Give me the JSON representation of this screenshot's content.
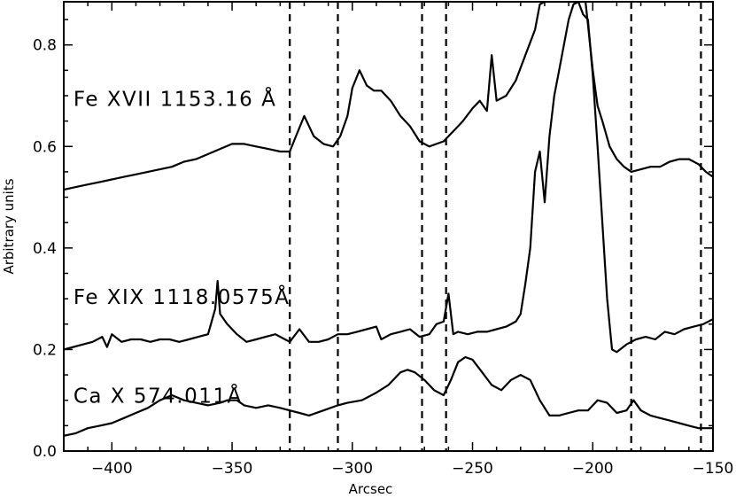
{
  "chart_data": {
    "type": "line",
    "title": "",
    "xlabel": "Arcsec",
    "ylabel": "Arbitrary units",
    "xlim": [
      -420,
      -150
    ],
    "ylim": [
      0.0,
      0.885
    ],
    "x_ticks": [
      -400,
      -350,
      -300,
      -250,
      -200,
      -150
    ],
    "x_tick_labels": [
      "−400",
      "−350",
      "−300",
      "−250",
      "−200",
      "−150"
    ],
    "y_ticks": [
      0.0,
      0.2,
      0.4,
      0.6,
      0.8
    ],
    "y_tick_labels": [
      "0.0",
      "0.2",
      "0.4",
      "0.6",
      "0.8"
    ],
    "vlines": [
      -326,
      -306,
      -271,
      -261,
      -184,
      -155
    ],
    "grid": false,
    "legend": "none",
    "line_color": "#000000",
    "series": [
      {
        "name": "Fe XVII 1153.16 Å",
        "label_anchor": [
          -416,
          0.68
        ],
        "x": [
          -420,
          -415,
          -410,
          -405,
          -400,
          -395,
          -390,
          -385,
          -380,
          -375,
          -370,
          -365,
          -360,
          -355,
          -350,
          -345,
          -340,
          -335,
          -330,
          -326,
          -323,
          -320,
          -316,
          -312,
          -308,
          -305,
          -302,
          -300,
          -297,
          -294,
          -291,
          -288,
          -284,
          -280,
          -276,
          -272,
          -268,
          -265,
          -262,
          -258,
          -254,
          -250,
          -247,
          -244,
          -242,
          -240,
          -236,
          -232,
          -228,
          -224,
          -222,
          -220,
          -218,
          -210,
          -207,
          -203,
          -200,
          -198,
          -196,
          -193,
          -190,
          -187,
          -184,
          -180,
          -176,
          -172,
          -168,
          -164,
          -160,
          -156,
          -153,
          -150
        ],
        "y": [
          0.515,
          0.52,
          0.525,
          0.53,
          0.535,
          0.54,
          0.545,
          0.55,
          0.555,
          0.56,
          0.57,
          0.575,
          0.585,
          0.595,
          0.605,
          0.605,
          0.6,
          0.595,
          0.59,
          0.59,
          0.625,
          0.66,
          0.62,
          0.605,
          0.6,
          0.62,
          0.66,
          0.715,
          0.75,
          0.72,
          0.71,
          0.71,
          0.69,
          0.66,
          0.64,
          0.61,
          0.6,
          0.605,
          0.61,
          0.63,
          0.65,
          0.675,
          0.69,
          0.67,
          0.78,
          0.69,
          0.7,
          0.73,
          0.78,
          0.83,
          0.88,
          0.885,
          0.885,
          0.885,
          0.885,
          0.885,
          0.75,
          0.68,
          0.65,
          0.6,
          0.575,
          0.56,
          0.55,
          0.555,
          0.56,
          0.56,
          0.57,
          0.575,
          0.575,
          0.565,
          0.55,
          0.54
        ]
      },
      {
        "name": "Fe XIX 1118.0575Å",
        "label_anchor": [
          -416,
          0.29
        ],
        "x": [
          -420,
          -416,
          -412,
          -408,
          -404,
          -402,
          -400,
          -396,
          -392,
          -388,
          -384,
          -380,
          -376,
          -372,
          -368,
          -364,
          -360,
          -357,
          -356,
          -355,
          -352,
          -348,
          -344,
          -340,
          -336,
          -332,
          -328,
          -326,
          -322,
          -318,
          -314,
          -310,
          -306,
          -302,
          -298,
          -294,
          -290,
          -288,
          -284,
          -280,
          -276,
          -272,
          -268,
          -265,
          -262,
          -260,
          -258,
          -256,
          -252,
          -248,
          -244,
          -240,
          -236,
          -232,
          -230,
          -228,
          -226,
          -224,
          -222,
          -220,
          -218,
          -216,
          -214,
          -212,
          -210,
          -208,
          -206,
          -204,
          -202,
          -200,
          -198,
          -196,
          -194,
          -192,
          -190,
          -186,
          -182,
          -178,
          -174,
          -170,
          -166,
          -162,
          -158,
          -154,
          -150
        ],
        "y": [
          0.2,
          0.205,
          0.21,
          0.215,
          0.225,
          0.205,
          0.23,
          0.215,
          0.22,
          0.22,
          0.215,
          0.22,
          0.22,
          0.215,
          0.22,
          0.225,
          0.23,
          0.28,
          0.335,
          0.27,
          0.25,
          0.23,
          0.215,
          0.22,
          0.225,
          0.23,
          0.22,
          0.215,
          0.24,
          0.215,
          0.215,
          0.22,
          0.23,
          0.23,
          0.235,
          0.24,
          0.245,
          0.22,
          0.23,
          0.235,
          0.24,
          0.225,
          0.23,
          0.25,
          0.255,
          0.31,
          0.23,
          0.235,
          0.23,
          0.235,
          0.235,
          0.24,
          0.245,
          0.255,
          0.27,
          0.33,
          0.4,
          0.55,
          0.59,
          0.49,
          0.62,
          0.7,
          0.75,
          0.8,
          0.85,
          0.88,
          0.885,
          0.86,
          0.85,
          0.74,
          0.6,
          0.45,
          0.3,
          0.2,
          0.195,
          0.21,
          0.22,
          0.225,
          0.22,
          0.235,
          0.23,
          0.24,
          0.245,
          0.25,
          0.26
        ]
      },
      {
        "name": "Ca X 574.011Å",
        "label_anchor": [
          -416,
          0.095
        ],
        "x": [
          -420,
          -415,
          -410,
          -405,
          -400,
          -395,
          -390,
          -385,
          -380,
          -375,
          -370,
          -365,
          -360,
          -355,
          -352,
          -348,
          -345,
          -340,
          -335,
          -330,
          -326,
          -322,
          -318,
          -312,
          -306,
          -302,
          -296,
          -290,
          -285,
          -280,
          -277,
          -274,
          -270,
          -266,
          -262,
          -259,
          -256,
          -253,
          -250,
          -246,
          -242,
          -238,
          -234,
          -230,
          -226,
          -222,
          -218,
          -214,
          -210,
          -206,
          -202,
          -198,
          -194,
          -190,
          -186,
          -183,
          -180,
          -176,
          -172,
          -168,
          -164,
          -160,
          -156,
          -153,
          -150
        ],
        "y": [
          0.03,
          0.035,
          0.045,
          0.05,
          0.055,
          0.065,
          0.075,
          0.085,
          0.1,
          0.11,
          0.1,
          0.095,
          0.09,
          0.095,
          0.1,
          0.1,
          0.09,
          0.085,
          0.09,
          0.085,
          0.08,
          0.075,
          0.07,
          0.08,
          0.09,
          0.095,
          0.1,
          0.115,
          0.13,
          0.155,
          0.16,
          0.155,
          0.14,
          0.12,
          0.11,
          0.14,
          0.175,
          0.185,
          0.18,
          0.155,
          0.13,
          0.12,
          0.14,
          0.15,
          0.14,
          0.1,
          0.07,
          0.07,
          0.075,
          0.08,
          0.08,
          0.1,
          0.095,
          0.075,
          0.08,
          0.1,
          0.08,
          0.07,
          0.065,
          0.06,
          0.055,
          0.05,
          0.045,
          0.045,
          0.045
        ]
      }
    ]
  }
}
